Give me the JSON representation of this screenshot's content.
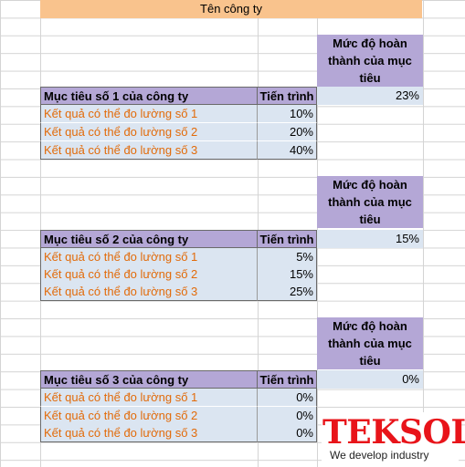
{
  "sheet": {
    "title": "Tên công ty",
    "completion_label": "Mức độ hoàn thành của mục tiêu",
    "progress_header": "Tiến trình",
    "goals": [
      {
        "name": "Mục tiêu số 1 của công ty",
        "completion": "23%",
        "results": [
          {
            "label": "Kết quả có thể đo lường số 1",
            "value": "10%"
          },
          {
            "label": "Kết quả có thể đo lường số 2",
            "value": "20%"
          },
          {
            "label": "Kết quả có thể đo lường số 3",
            "value": "40%"
          }
        ]
      },
      {
        "name": "Mục tiêu số 2 của công ty",
        "completion": "15%",
        "results": [
          {
            "label": "Kết quả có thể đo lường số 1",
            "value": "5%"
          },
          {
            "label": "Kết quả có thể đo lường số 2",
            "value": "15%"
          },
          {
            "label": "Kết quả có thể đo lường số 3",
            "value": "25%"
          }
        ]
      },
      {
        "name": "Mục tiêu số 3 của công ty",
        "completion": "0%",
        "results": [
          {
            "label": "Kết quả có thể đo lường số 1",
            "value": "0%"
          },
          {
            "label": "Kết quả có thể đo lường số 2",
            "value": "0%"
          },
          {
            "label": "Kết quả có thể đo lường số 3",
            "value": "0%"
          }
        ]
      }
    ]
  },
  "logo": {
    "wordmark": "TEKSOL",
    "tagline": "We develop industry"
  },
  "colors": {
    "title_fill": "#f9c38d",
    "header_fill": "#b4a7d6",
    "row_fill": "#dbe5f1",
    "result_text": "#e26b0a",
    "logo_red": "#e8141a"
  }
}
